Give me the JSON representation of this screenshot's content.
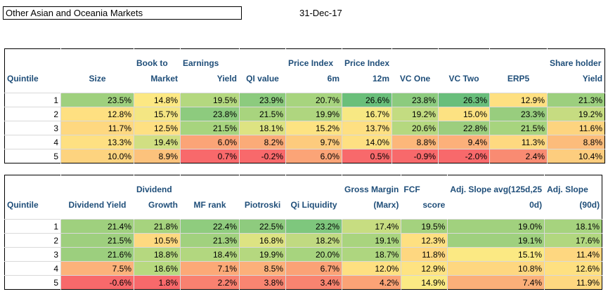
{
  "title": "Other Asian and Oceania Markets",
  "date": "31-Dec-17",
  "table1": {
    "headers": [
      [
        "",
        "Quintile"
      ],
      [
        "",
        "Size"
      ],
      [
        "Book to",
        "Market"
      ],
      [
        "Earnings",
        "Yield"
      ],
      [
        "",
        "QI value"
      ],
      [
        "Price Index",
        "6m"
      ],
      [
        "Price Index",
        "12m"
      ],
      [
        "",
        "VC One"
      ],
      [
        "",
        "VC Two"
      ],
      [
        "",
        "ERP5"
      ],
      [
        "Share holder",
        "Yield"
      ]
    ],
    "rows": [
      [
        "1",
        "23.5%",
        "14.8%",
        "19.5%",
        "23.9%",
        "20.7%",
        "26.6%",
        "23.8%",
        "26.3%",
        "12.9%",
        "21.3%"
      ],
      [
        "2",
        "12.8%",
        "15.7%",
        "23.8%",
        "21.5%",
        "19.9%",
        "16.7%",
        "19.2%",
        "15.0%",
        "23.3%",
        "19.2%"
      ],
      [
        "3",
        "11.7%",
        "12.5%",
        "21.5%",
        "18.1%",
        "15.2%",
        "13.7%",
        "20.6%",
        "22.8%",
        "21.5%",
        "11.6%"
      ],
      [
        "4",
        "13.3%",
        "19.4%",
        "6.0%",
        "8.2%",
        "9.7%",
        "14.0%",
        "8.8%",
        "9.4%",
        "11.3%",
        "8.8%"
      ],
      [
        "5",
        "10.0%",
        "8.9%",
        "0.7%",
        "-0.2%",
        "6.0%",
        "0.5%",
        "-0.9%",
        "-2.0%",
        "2.4%",
        "10.4%"
      ]
    ],
    "colors": [
      [
        "#ffffff",
        "#9fd07e",
        "#fce883",
        "#b4d87f",
        "#8ccb7e",
        "#a7d47e",
        "#6abf7a",
        "#8ccb7e",
        "#69be7b",
        "#fee081",
        "#9ccf7e"
      ],
      [
        "#ffffff",
        "#fee081",
        "#f4e683",
        "#8dcb7e",
        "#a8d47e",
        "#afd67f",
        "#f7e883",
        "#c3dc81",
        "#fde282",
        "#98cd7e",
        "#c6dc81"
      ],
      [
        "#ffffff",
        "#fed880",
        "#fee082",
        "#a7d47e",
        "#dde382",
        "#fde382",
        "#fee082",
        "#b5d87f",
        "#9cce7e",
        "#a7d47e",
        "#fdd47f"
      ],
      [
        "#ffffff",
        "#fee082",
        "#d1df82",
        "#fba477",
        "#fbab78",
        "#fdcb7d",
        "#fee082",
        "#fcb77a",
        "#fcb07a",
        "#fed980",
        "#fcbc7b"
      ],
      [
        "#ffffff",
        "#fdd37f",
        "#fcc27c",
        "#f8696b",
        "#f8696b",
        "#fba477",
        "#f8696b",
        "#f8696b",
        "#f8696b",
        "#f98b72",
        "#fdcd7e"
      ]
    ]
  },
  "table2": {
    "headers": [
      [
        "",
        "Quintile"
      ],
      [
        "",
        "Dividend Yield"
      ],
      [
        "Dividend",
        "Growth"
      ],
      [
        "",
        "MF rank"
      ],
      [
        "",
        "Piotroski"
      ],
      [
        "",
        "Qi Liquidity"
      ],
      [
        "Gross Margin",
        "(Marx)"
      ],
      [
        "FCF",
        "score"
      ],
      [
        "Adj. Slope avg(125d,25",
        "0d)"
      ],
      [
        "Adj. Slope",
        "(90d)"
      ]
    ],
    "rows": [
      [
        "1",
        "21.4%",
        "21.8%",
        "22.4%",
        "22.5%",
        "23.2%",
        "17.4%",
        "19.5%",
        "19.0%",
        "18.1%"
      ],
      [
        "2",
        "21.5%",
        "10.5%",
        "21.3%",
        "16.8%",
        "18.2%",
        "19.1%",
        "12.3%",
        "19.1%",
        "17.6%"
      ],
      [
        "3",
        "21.6%",
        "18.8%",
        "18.4%",
        "19.9%",
        "20.0%",
        "18.7%",
        "11.8%",
        "15.1%",
        "11.4%"
      ],
      [
        "4",
        "7.5%",
        "18.6%",
        "7.1%",
        "8.5%",
        "6.7%",
        "12.0%",
        "12.9%",
        "10.8%",
        "12.6%"
      ],
      [
        "5",
        "-0.6%",
        "1.8%",
        "2.2%",
        "3.8%",
        "3.4%",
        "4.2%",
        "14.9%",
        "7.4%",
        "11.9%"
      ]
    ],
    "colors": [
      [
        "#ffffff",
        "#9fd07e",
        "#a6d37e",
        "#8fcc7e",
        "#8ecb7e",
        "#7ec77d",
        "#c7dd81",
        "#a4d27e",
        "#a1d17e",
        "#a6d37e"
      ],
      [
        "#ffffff",
        "#9ecf7e",
        "#fed980",
        "#a1d17e",
        "#dde382",
        "#c0da81",
        "#a9d47e",
        "#fee081",
        "#9fd07e",
        "#b1d77f"
      ],
      [
        "#ffffff",
        "#9ccf7e",
        "#b5d87f",
        "#b2d77f",
        "#b5d87f",
        "#a7d47e",
        "#aed67f",
        "#fed780",
        "#fbe983",
        "#fed780"
      ],
      [
        "#ffffff",
        "#fcb27a",
        "#b7d97f",
        "#fca977",
        "#fcb07a",
        "#fba276",
        "#fee081",
        "#fee382",
        "#fed780",
        "#fee081"
      ],
      [
        "#ffffff",
        "#f8696b",
        "#f8696b",
        "#f98170",
        "#f98571",
        "#f98470",
        "#fba376",
        "#fbea84",
        "#fbaf79",
        "#fed880"
      ]
    ]
  }
}
